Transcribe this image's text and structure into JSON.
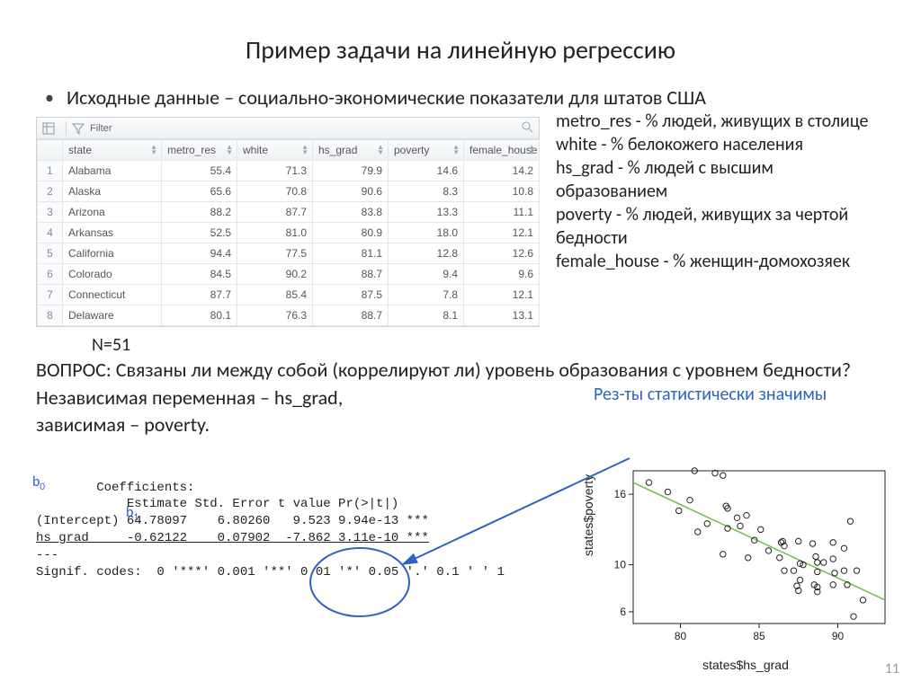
{
  "title": "Пример задачи на линейную регрессию",
  "lead": "Исходные данные – социально-экономические показатели для штатов США",
  "toolbar": {
    "filter_label": "Filter"
  },
  "table": {
    "columns": [
      "state",
      "metro_res",
      "white",
      "hs_grad",
      "poverty",
      "female_house"
    ],
    "rows": [
      {
        "n": "1",
        "state": "Alabama",
        "metro_res": "55.4",
        "white": "71.3",
        "hs_grad": "79.9",
        "poverty": "14.6",
        "female_house": "14.2"
      },
      {
        "n": "2",
        "state": "Alaska",
        "metro_res": "65.6",
        "white": "70.8",
        "hs_grad": "90.6",
        "poverty": "8.3",
        "female_house": "10.8"
      },
      {
        "n": "3",
        "state": "Arizona",
        "metro_res": "88.2",
        "white": "87.7",
        "hs_grad": "83.8",
        "poverty": "13.3",
        "female_house": "11.1"
      },
      {
        "n": "4",
        "state": "Arkansas",
        "metro_res": "52.5",
        "white": "81.0",
        "hs_grad": "80.9",
        "poverty": "18.0",
        "female_house": "12.1"
      },
      {
        "n": "5",
        "state": "California",
        "metro_res": "94.4",
        "white": "77.5",
        "hs_grad": "81.1",
        "poverty": "12.8",
        "female_house": "12.6"
      },
      {
        "n": "6",
        "state": "Colorado",
        "metro_res": "84.5",
        "white": "90.2",
        "hs_grad": "88.7",
        "poverty": "9.4",
        "female_house": "9.6"
      },
      {
        "n": "7",
        "state": "Connecticut",
        "metro_res": "87.7",
        "white": "85.4",
        "hs_grad": "87.5",
        "poverty": "7.8",
        "female_house": "12.1"
      },
      {
        "n": "8",
        "state": "Delaware",
        "metro_res": "80.1",
        "white": "76.3",
        "hs_grad": "88.7",
        "poverty": "8.1",
        "female_house": "13.1"
      }
    ]
  },
  "defs": {
    "l1": "metro_res - % людей, живущих в столице",
    "l2": "white - % белокожего населения",
    "l3": "hs_grad - % людей с высшим образованием",
    "l4": "poverty - % людей, живущих за чертой бедности",
    "l5": "female_house - % женщин-домохозяек"
  },
  "n51": "N=51",
  "question": "ВОПРОС: Связаны ли между собой (коррелируют ли) уровень образования с уровнем бедности?",
  "indep": "Независимая переменная – hs_grad,",
  "dep": "зависимая – poverty.",
  "annot": "Рез-ты статистически значимы",
  "coef": {
    "title": "Coefficients:",
    "hdr": "            Estimate Std. Error t value Pr(>|t|)",
    "row1": "(Intercept) 64.78097    6.80260   9.523 9.94e-13 ***",
    "row2": "hs_grad     -0.62122    0.07902  -7.862 3.11e-10 ***",
    "dash": "---",
    "sig": "Signif. codes:  0 '***' 0.001 '**' 0.01 '*' 0.05 '.' 0.1 ' ' 1",
    "b0": "b",
    "b0s": "0",
    "b1": "b",
    "b1s": "1"
  },
  "scatter": {
    "type": "scatter",
    "xlabel": "states$hs_grad",
    "ylabel": "states$poverty",
    "xlim": [
      77,
      93
    ],
    "xticks": [
      80,
      85,
      90
    ],
    "ylim": [
      5,
      18
    ],
    "yticks": [
      6,
      10,
      16
    ],
    "line_color": "#6fbf4b",
    "point_stroke": "#222222",
    "point_fill": "none",
    "point_r": 3.2,
    "bg": "#ffffff",
    "axis_color": "#222222",
    "line": {
      "x1": 77,
      "y1": 17.0,
      "x2": 93,
      "y2": 7.0
    },
    "points": [
      [
        79.9,
        14.6
      ],
      [
        90.6,
        8.3
      ],
      [
        83.8,
        13.3
      ],
      [
        80.9,
        18.0
      ],
      [
        81.1,
        12.8
      ],
      [
        88.7,
        9.4
      ],
      [
        87.5,
        7.8
      ],
      [
        88.7,
        8.1
      ],
      [
        84.7,
        12.1
      ],
      [
        85.1,
        13.0
      ],
      [
        88.5,
        8.3
      ],
      [
        88.4,
        11.8
      ],
      [
        86.4,
        11.9
      ],
      [
        87.2,
        9.5
      ],
      [
        89.7,
        8.3
      ],
      [
        88.6,
        10.7
      ],
      [
        81.7,
        13.5
      ],
      [
        83.0,
        14.8
      ],
      [
        89.7,
        10.5
      ],
      [
        87.4,
        8.2
      ],
      [
        87.8,
        10.0
      ],
      [
        87.5,
        12.0
      ],
      [
        91.6,
        7.0
      ],
      [
        82.7,
        17.6
      ],
      [
        86.6,
        11.6
      ],
      [
        90.8,
        13.7
      ],
      [
        90.4,
        9.5
      ],
      [
        84.3,
        10.6
      ],
      [
        91.0,
        5.6
      ],
      [
        87.6,
        8.7
      ],
      [
        82.2,
        17.8
      ],
      [
        84.2,
        14.2
      ],
      [
        83.0,
        13.1
      ],
      [
        89.7,
        11.9
      ],
      [
        87.6,
        10.1
      ],
      [
        85.6,
        11.2
      ],
      [
        86.5,
        12.0
      ],
      [
        86.3,
        10.6
      ],
      [
        82.7,
        10.9
      ],
      [
        83.6,
        14.0
      ],
      [
        88.7,
        10.2
      ],
      [
        82.9,
        15.0
      ],
      [
        79.2,
        16.2
      ],
      [
        89.8,
        9.3
      ],
      [
        88.7,
        7.7
      ],
      [
        86.6,
        9.5
      ],
      [
        90.4,
        11.4
      ],
      [
        80.6,
        15.5
      ],
      [
        89.1,
        10.2
      ],
      [
        91.2,
        9.5
      ],
      [
        78.0,
        17.0
      ]
    ]
  },
  "page": "11",
  "arrow": {
    "color": "#2e63c4"
  },
  "ellipse": {
    "color": "#2e63c4"
  }
}
